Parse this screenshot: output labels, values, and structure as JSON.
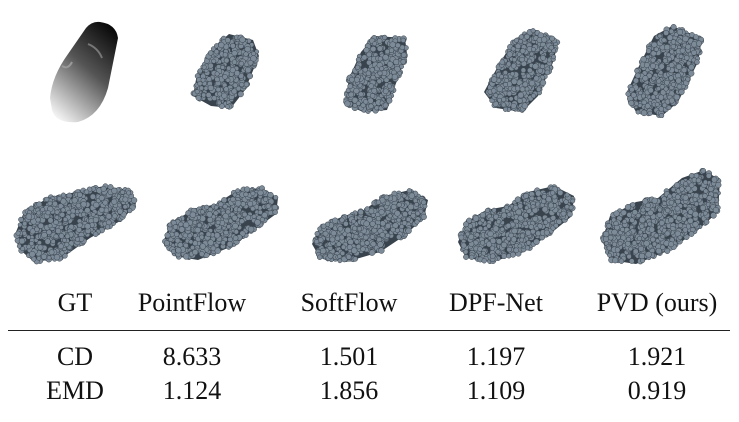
{
  "columns": [
    "GT",
    "PointFlow",
    "SoftFlow",
    "DPF-Net",
    "PVD (ours)"
  ],
  "rows": [
    {
      "label": "CD",
      "values": [
        "8.633",
        "1.501",
        "1.197",
        "1.921"
      ]
    },
    {
      "label": "EMD",
      "values": [
        "1.124",
        "1.856",
        "1.109",
        "0.919"
      ]
    }
  ],
  "colors": {
    "point_fill": "#7d8b98",
    "point_dark": "#38434d",
    "depth_light": "#efefef",
    "depth_dark": "#0a0a0a"
  }
}
